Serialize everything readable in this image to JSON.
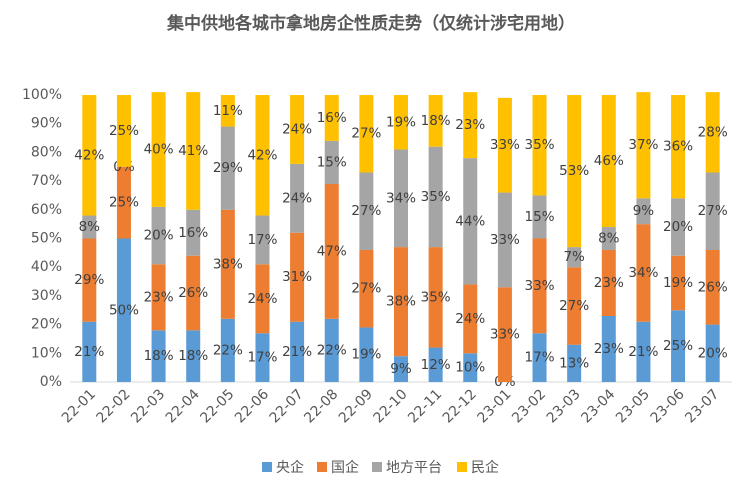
{
  "chart_data": {
    "type": "stacked_bar",
    "title": "集中供地各城市拿地房企性质走势（仅统计涉宅用地）",
    "categories": [
      "22-01",
      "22-02",
      "22-03",
      "22-04",
      "22-05",
      "22-06",
      "22-07",
      "22-08",
      "22-09",
      "22-10",
      "22-11",
      "22-12",
      "23-01",
      "23-02",
      "23-03",
      "23-04",
      "23-05",
      "23-06",
      "23-07"
    ],
    "series": [
      {
        "name": "央企",
        "color": "#5b9bd5",
        "values": [
          21,
          50,
          18,
          18,
          22,
          17,
          21,
          22,
          19,
          9,
          12,
          10,
          0,
          17,
          13,
          23,
          21,
          25,
          20
        ],
        "value_labels": [
          "21%",
          "50%",
          "18%",
          "18%",
          "22%",
          "17%",
          "21%",
          "22%",
          "19%",
          "9%",
          "12%",
          "10%",
          "0%",
          "17%",
          "13%",
          "23%",
          "21%",
          "25%",
          "20%"
        ]
      },
      {
        "name": "国企",
        "color": "#ed7d31",
        "values": [
          29,
          25,
          23,
          26,
          38,
          24,
          31,
          47,
          27,
          38,
          35,
          24,
          33,
          33,
          27,
          23,
          34,
          19,
          26
        ],
        "value_labels": [
          "29%",
          "25%",
          "23%",
          "26%",
          "38%",
          "24%",
          "31%",
          "47%",
          "27%",
          "38%",
          "35%",
          "24%",
          "33%",
          "33%",
          "27%",
          "23%",
          "34%",
          "19%",
          "26%"
        ]
      },
      {
        "name": "地方平台",
        "color": "#a5a5a5",
        "values": [
          8,
          0,
          20,
          16,
          29,
          17,
          24,
          15,
          27,
          34,
          35,
          44,
          33,
          15,
          7,
          8,
          9,
          20,
          27
        ],
        "value_labels": [
          "8%",
          "0%",
          "20%",
          "16%",
          "29%",
          "17%",
          "24%",
          "15%",
          "27%",
          "34%",
          "35%",
          "44%",
          "33%",
          "15%",
          "7%",
          "8%",
          "9%",
          "20%",
          "27%"
        ]
      },
      {
        "name": "民企",
        "color": "#ffc000",
        "values": [
          42,
          25,
          40,
          41,
          11,
          42,
          24,
          16,
          27,
          19,
          18,
          23,
          33,
          35,
          53,
          46,
          37,
          36,
          28
        ],
        "value_labels": [
          "42%",
          "25%",
          "40%",
          "41%",
          "11%",
          "42%",
          "24%",
          "16%",
          "27%",
          "19%",
          "18%",
          "23%",
          "33%",
          "35%",
          "53%",
          "46%",
          "37%",
          "36%",
          "28%"
        ]
      }
    ],
    "ylim": [
      0,
      100
    ],
    "yticks": [
      {
        "value": 0,
        "label": "0%"
      },
      {
        "value": 10,
        "label": "10%"
      },
      {
        "value": 20,
        "label": "20%"
      },
      {
        "value": 30,
        "label": "30%"
      },
      {
        "value": 40,
        "label": "40%"
      },
      {
        "value": 50,
        "label": "50%"
      },
      {
        "value": 60,
        "label": "60%"
      },
      {
        "value": 70,
        "label": "70%"
      },
      {
        "value": 80,
        "label": "80%"
      },
      {
        "value": 90,
        "label": "90%"
      },
      {
        "value": 100,
        "label": "100%"
      }
    ],
    "grid": false,
    "legend": "bottom"
  }
}
